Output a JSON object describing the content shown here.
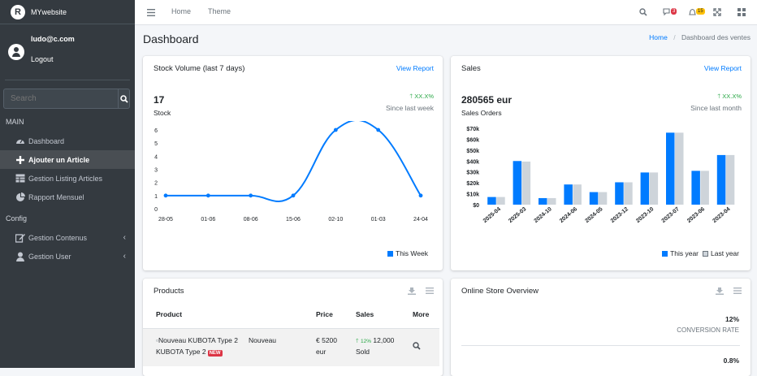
{
  "brand": {
    "logo": "R",
    "name": "MYwebsite"
  },
  "user": {
    "email": "ludo@c.com",
    "logout": "Logout"
  },
  "search": {
    "placeholder": "Search"
  },
  "sidebar": {
    "main_header": "MAIN",
    "config_header": "Config",
    "items": [
      {
        "label": "Dashboard",
        "icon": "tachometer-icon"
      },
      {
        "label": "Ajouter un Article",
        "icon": "plus-icon",
        "active": true
      },
      {
        "label": "Gestion Listing Articles",
        "icon": "table-icon"
      },
      {
        "label": "Rapport Mensuel",
        "icon": "chart-pie-icon"
      },
      {
        "label": "Gestion Contenus",
        "icon": "edit-icon"
      },
      {
        "label": "Gestion User",
        "icon": "user-icon"
      }
    ]
  },
  "topbar": {
    "home": "Home",
    "theme": "Theme",
    "messages_badge": "3",
    "notifications_badge": "15"
  },
  "page": {
    "title": "Dashboard",
    "breadcrumb_home": "Home",
    "breadcrumb_current": "Dashboard des ventes"
  },
  "stock_card": {
    "title": "Stock Volume (last 7 days)",
    "link": "View Report",
    "value": "17",
    "label": "Stock",
    "trend": "XX.X%",
    "since": "Since last week",
    "legend": "This Week"
  },
  "sales_card": {
    "title": "Sales",
    "link": "View Report",
    "value": "280565 eur",
    "label": "Sales Orders",
    "trend": "XX.X%",
    "since": "Since last month",
    "legend_this": "This year",
    "legend_last": "Last year"
  },
  "products_card": {
    "title": "Products",
    "headers": {
      "product": "Product",
      "price": "Price",
      "sales": "Sales",
      "more": "More"
    },
    "rows": [
      {
        "name_line1": "Nouveau KUBOTA Type 2",
        "extra": "Nouveau",
        "name_line2": "KUBOTA Type 2",
        "badge": "NEW",
        "price_line1": "€ 5200",
        "price_line2": "eur",
        "sales_pct": "12%",
        "sales_count": "12,000",
        "sales_label": "Sold"
      }
    ]
  },
  "overview_card": {
    "title": "Online Store Overview",
    "stats": [
      {
        "value": "12%",
        "label": "CONVERSION RATE"
      },
      {
        "value": "0.8%",
        "label": ""
      }
    ]
  },
  "colors": {
    "sidebar": "#343a40",
    "primary": "#007bff",
    "grey": "#ced4da",
    "success": "#28a745",
    "danger": "#dc3545",
    "warning": "#ffc107"
  },
  "chart_data": [
    {
      "type": "line",
      "x": [
        "28-05",
        "01-06",
        "08-06",
        "15-06",
        "02-10",
        "01-03",
        "24-04"
      ],
      "series": [
        {
          "name": "This Week",
          "values": [
            1,
            1,
            1,
            1,
            6,
            6,
            1
          ]
        }
      ],
      "ylim": [
        0,
        6
      ],
      "yticks": [
        0,
        1,
        2,
        3,
        4,
        5,
        6
      ],
      "legend": "bottom-right",
      "grid": false
    },
    {
      "type": "bar",
      "categories": [
        "2025-04",
        "2025-03",
        "2024-10",
        "2024-06",
        "2024-05",
        "2023-12",
        "2023-10",
        "2023-07",
        "2023-06",
        "2023-04"
      ],
      "series": [
        {
          "name": "This year",
          "values": [
            7000,
            40000,
            6000,
            18500,
            11500,
            20500,
            29500,
            66000,
            31000,
            45500
          ]
        },
        {
          "name": "Last year",
          "values": [
            7000,
            39500,
            6000,
            18500,
            11500,
            20500,
            29500,
            66000,
            31000,
            45500
          ]
        }
      ],
      "ylim": [
        0,
        70000
      ],
      "yticks": [
        "$0",
        "$10k",
        "$20k",
        "$30k",
        "$40k",
        "$50k",
        "$60k",
        "$70k"
      ],
      "legend": "bottom-right",
      "grid": false
    }
  ]
}
